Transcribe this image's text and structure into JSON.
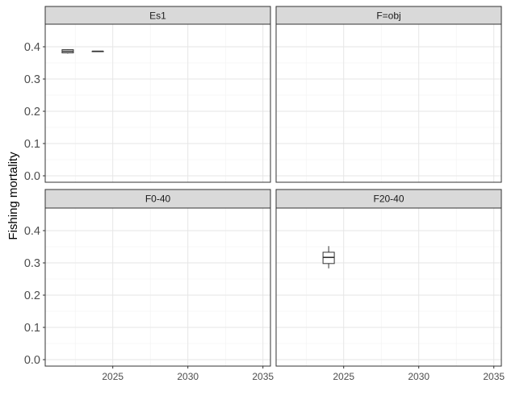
{
  "chart_data": {
    "type": "boxplot",
    "facets": [
      "Es1",
      "F=obj",
      "F0-40",
      "F20-40"
    ],
    "ylabel": "Fishing mortality",
    "xlabel": "",
    "x_ticks": [
      2025,
      2030,
      2035
    ],
    "y_ticks": [
      "0.0",
      "0.1",
      "0.2",
      "0.3",
      "0.4"
    ],
    "xlim": [
      2020.5,
      2035.5
    ],
    "ylim": [
      -0.02,
      0.47
    ],
    "grid": true,
    "series": [
      {
        "facet": "Es1",
        "boxes": [
          {
            "x": 2022,
            "min": 0.379,
            "q1": 0.381,
            "median": 0.386,
            "q3": 0.391,
            "max": 0.392
          },
          {
            "x": 2024,
            "min": 0.385,
            "q1": 0.385,
            "median": 0.386,
            "q3": 0.386,
            "max": 0.386
          }
        ]
      },
      {
        "facet": "F=obj",
        "boxes": []
      },
      {
        "facet": "F0-40",
        "boxes": []
      },
      {
        "facet": "F20-40",
        "boxes": [
          {
            "x": 2024,
            "min": 0.283,
            "q1": 0.298,
            "median": 0.317,
            "q3": 0.333,
            "max": 0.352
          }
        ]
      }
    ]
  }
}
